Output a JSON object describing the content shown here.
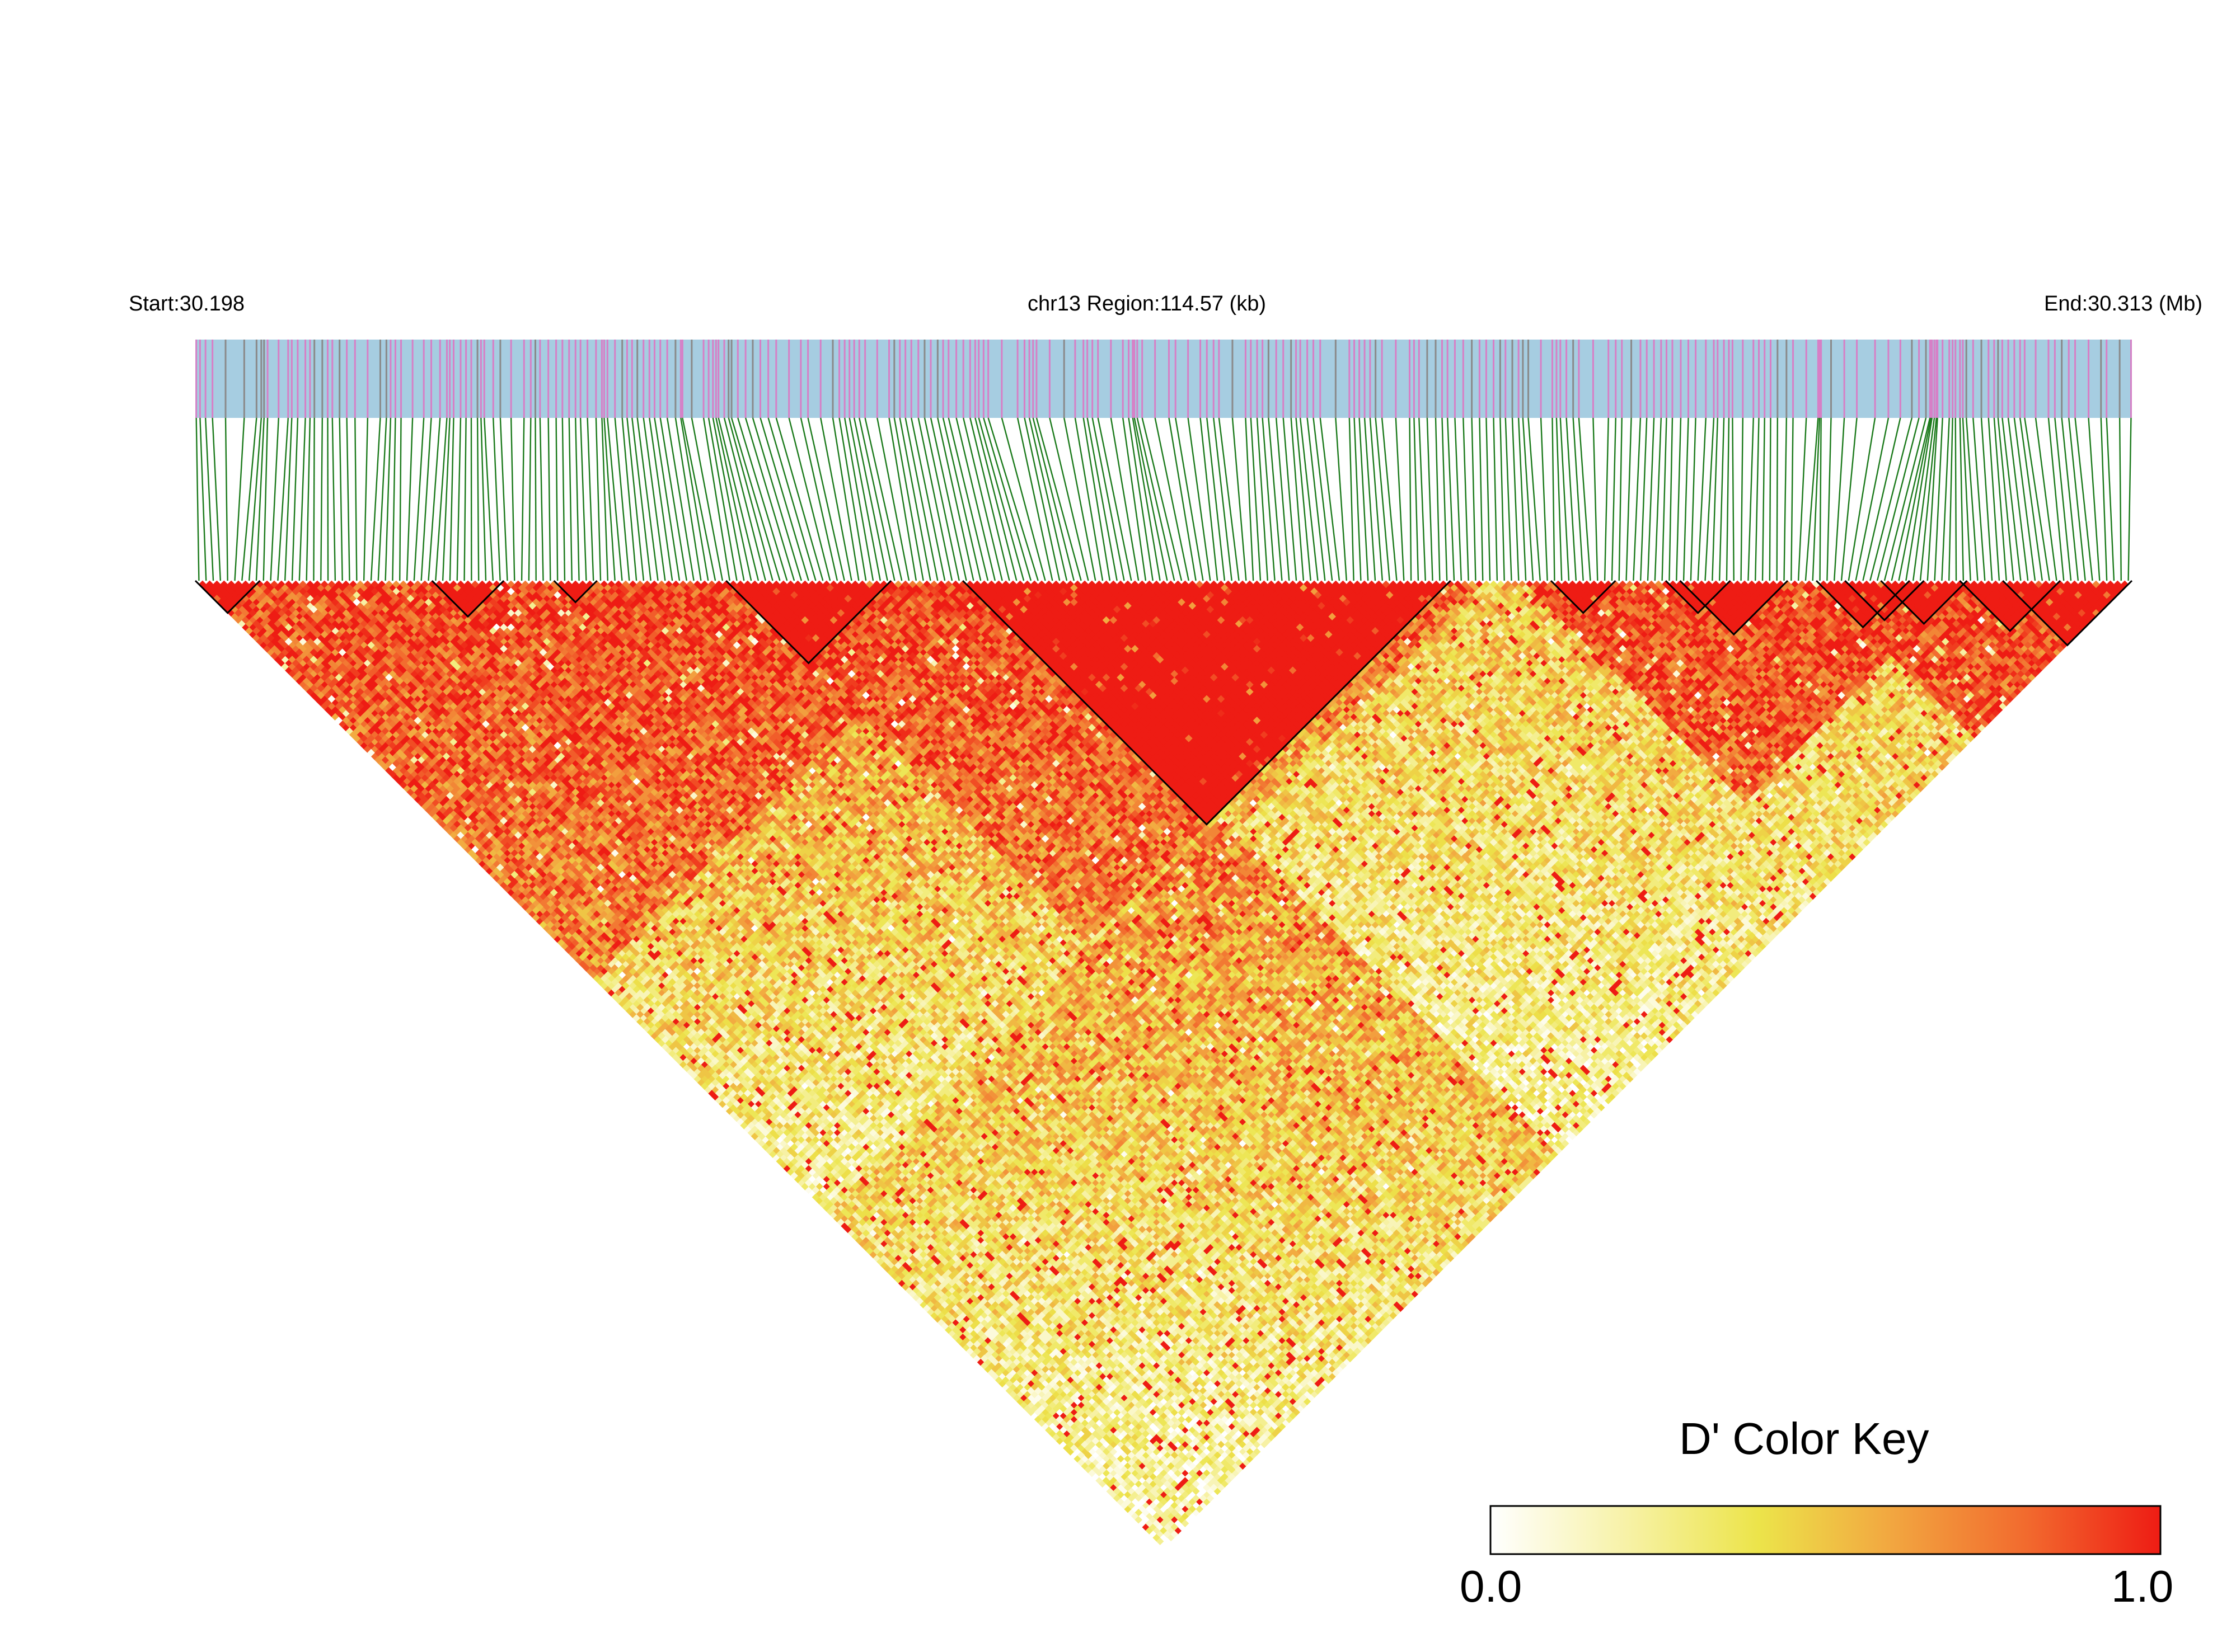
{
  "header": {
    "start_label": "Start:30.198",
    "region_label": "chr13 Region:114.57 (kb)",
    "end_label": "End:30.313 (Mb)"
  },
  "color_key": {
    "title": "D' Color Key",
    "min_label": "0.0",
    "max_label": "1.0",
    "stops": [
      "#ffffff",
      "#f7f2a8",
      "#ece44a",
      "#f2a640",
      "#f26a2e",
      "#ee1c14"
    ]
  },
  "colors": {
    "track_background": "#a6cde1",
    "snp_tick_pink": "#d77fc6",
    "snp_tick_gray": "#8a8a8a",
    "connector_green": "#1b7a1b",
    "block_outline": "#000000",
    "high_ld": "#fe0000"
  },
  "matrix": {
    "snp_count": 270,
    "ld_blocks": [
      [
        0,
        8
      ],
      [
        33,
        42
      ],
      [
        50,
        55
      ],
      [
        74,
        96
      ],
      [
        107,
        174
      ],
      [
        189,
        197
      ],
      [
        205,
        213
      ],
      [
        207,
        221
      ],
      [
        226,
        238
      ],
      [
        230,
        240
      ],
      [
        235,
        246
      ],
      [
        246,
        259
      ],
      [
        252,
        269
      ]
    ]
  }
}
